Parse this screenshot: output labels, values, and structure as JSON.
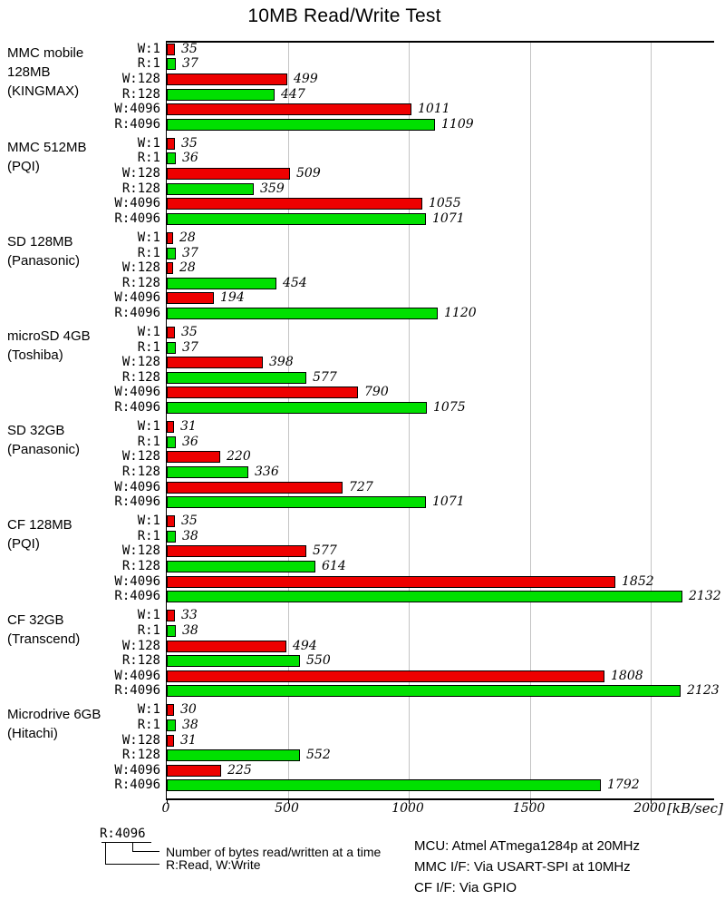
{
  "chart_data": {
    "type": "bar",
    "orientation": "horizontal",
    "title": "10MB Read/Write Test",
    "unit_label": "[kB/sec]",
    "x_ticks": [
      0,
      500,
      1000,
      1500,
      2000
    ],
    "xlim": [
      0,
      2262
    ],
    "grid": true,
    "row_labels": [
      "W:1",
      "R:1",
      "W:128",
      "R:128",
      "W:4096",
      "R:4096"
    ],
    "bar_colors": {
      "write": "#ee0000",
      "read": "#00e000"
    },
    "groups": [
      {
        "label": "MMC mobile\n128MB\n(KINGMAX)",
        "values": [
          35,
          37,
          499,
          447,
          1011,
          1109
        ]
      },
      {
        "label": "MMC 512MB\n(PQI)",
        "values": [
          35,
          36,
          509,
          359,
          1055,
          1071
        ]
      },
      {
        "label": "SD 128MB\n(Panasonic)",
        "values": [
          28,
          37,
          28,
          454,
          194,
          1120
        ]
      },
      {
        "label": "microSD 4GB\n(Toshiba)",
        "values": [
          35,
          37,
          398,
          577,
          790,
          1075
        ]
      },
      {
        "label": "SD 32GB\n(Panasonic)",
        "values": [
          31,
          36,
          220,
          336,
          727,
          1071
        ]
      },
      {
        "label": "CF 128MB\n(PQI)",
        "values": [
          35,
          38,
          577,
          614,
          1852,
          2132
        ]
      },
      {
        "label": "CF 32GB\n(Transcend)",
        "values": [
          33,
          38,
          494,
          550,
          1808,
          2123
        ]
      },
      {
        "label": "Microdrive 6GB\n(Hitachi)",
        "values": [
          30,
          38,
          31,
          552,
          225,
          1792
        ]
      }
    ]
  },
  "legend": {
    "example_label": "R:4096",
    "line1": "Number of bytes read/written at a time",
    "line2": "R:Read, W:Write"
  },
  "footer": {
    "lines": [
      "MCU: Atmel ATmega1284p at 20MHz",
      "MMC I/F: Via USART-SPI at 10MHz",
      "CF I/F: Via GPIO"
    ]
  }
}
